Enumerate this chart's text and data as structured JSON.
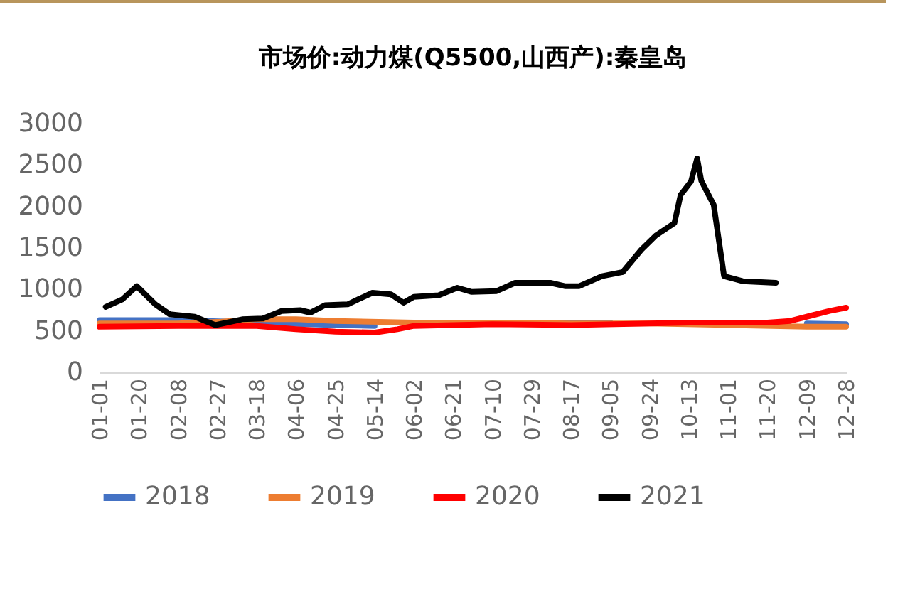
{
  "chart_data": {
    "type": "line",
    "title": "市场价:动力煤(Q5500,山西产):秦皇岛",
    "xlim": [
      "--01-01",
      "--12-28"
    ],
    "xticks": [
      {
        "value": "--01-01",
        "label": "01-01"
      },
      {
        "value": "--01-20",
        "label": "01-20"
      },
      {
        "value": "--02-08",
        "label": "02-08"
      },
      {
        "value": "--02-27",
        "label": "02-27"
      },
      {
        "value": "--03-18",
        "label": "03-18"
      },
      {
        "value": "--04-06",
        "label": "04-06"
      },
      {
        "value": "--04-25",
        "label": "04-25"
      },
      {
        "value": "--05-14",
        "label": "05-14"
      },
      {
        "value": "--06-02",
        "label": "06-02"
      },
      {
        "value": "--06-21",
        "label": "06-21"
      },
      {
        "value": "--07-10",
        "label": "07-10"
      },
      {
        "value": "--07-29",
        "label": "07-29"
      },
      {
        "value": "--08-17",
        "label": "08-17"
      },
      {
        "value": "--09-05",
        "label": "09-05"
      },
      {
        "value": "--09-24",
        "label": "09-24"
      },
      {
        "value": "--10-13",
        "label": "10-13"
      },
      {
        "value": "--11-01",
        "label": "11-01"
      },
      {
        "value": "--11-20",
        "label": "11-20"
      },
      {
        "value": "--12-09",
        "label": "12-09"
      },
      {
        "value": "--12-28",
        "label": "12-28"
      }
    ],
    "ylim": [
      0,
      3000
    ],
    "yticks": [
      0,
      500,
      1000,
      1500,
      2000,
      2500,
      3000
    ],
    "grid": false,
    "legend": "bottom",
    "marker": "none",
    "line_style": "solid",
    "series": [
      {
        "name": "2018",
        "color": "#4472c4",
        "x": [
          "--01-01",
          "--02-08",
          "--03-18",
          "--04-25",
          "--05-14",
          "--06-21",
          "--07-29",
          "--09-05",
          "--10-13",
          "--11-20",
          "--12-09",
          "--12-28"
        ],
        "values": [
          630,
          630,
          600,
          570,
          560,
          null,
          600,
          600,
          null,
          null,
          590,
          580
        ]
      },
      {
        "name": "2019",
        "color": "#ed7d31",
        "x": [
          "--01-01",
          "--02-08",
          "--03-01",
          "--03-18",
          "--04-06",
          "--04-25",
          "--06-02",
          "--07-10",
          "--08-17",
          "--09-24",
          "--11-01",
          "--12-09",
          "--12-28"
        ],
        "values": [
          590,
          590,
          610,
          640,
          640,
          620,
          600,
          600,
          590,
          590,
          570,
          550,
          550
        ]
      },
      {
        "name": "2020",
        "color": "#ff0000",
        "x": [
          "--01-01",
          "--02-08",
          "--03-18",
          "--04-06",
          "--04-25",
          "--05-14",
          "--05-25",
          "--06-02",
          "--06-21",
          "--07-10",
          "--08-17",
          "--09-24",
          "--10-13",
          "--11-20",
          "--12-01",
          "--12-12",
          "--12-20",
          "--12-28"
        ],
        "values": [
          550,
          560,
          560,
          520,
          490,
          480,
          520,
          560,
          570,
          580,
          570,
          590,
          600,
          600,
          620,
          690,
          740,
          780
        ]
      },
      {
        "name": "2021",
        "color": "#000000",
        "x": [
          "--01-04",
          "--01-12",
          "--01-19",
          "--01-28",
          "--02-04",
          "--02-16",
          "--02-26",
          "--03-11",
          "--03-21",
          "--03-30",
          "--04-08",
          "--04-13",
          "--04-20",
          "--05-01",
          "--05-06",
          "--05-13",
          "--05-22",
          "--05-28",
          "--06-02",
          "--06-14",
          "--06-23",
          "--06-30",
          "--07-12",
          "--07-21",
          "--08-07",
          "--08-14",
          "--08-21",
          "--09-01",
          "--09-11",
          "--09-20",
          "--09-27",
          "--10-06",
          "--10-09",
          "--10-14",
          "--10-17",
          "--10-19",
          "--10-25",
          "--10-30",
          "--11-08",
          "--11-24"
        ],
        "values": [
          790,
          880,
          1040,
          820,
          700,
          670,
          570,
          640,
          650,
          740,
          750,
          720,
          810,
          820,
          880,
          960,
          940,
          840,
          910,
          930,
          1020,
          970,
          980,
          1080,
          1080,
          1040,
          1040,
          1160,
          1210,
          1480,
          1650,
          1800,
          2140,
          2300,
          2580,
          2310,
          2020,
          1160,
          1100,
          1080
        ]
      }
    ]
  }
}
